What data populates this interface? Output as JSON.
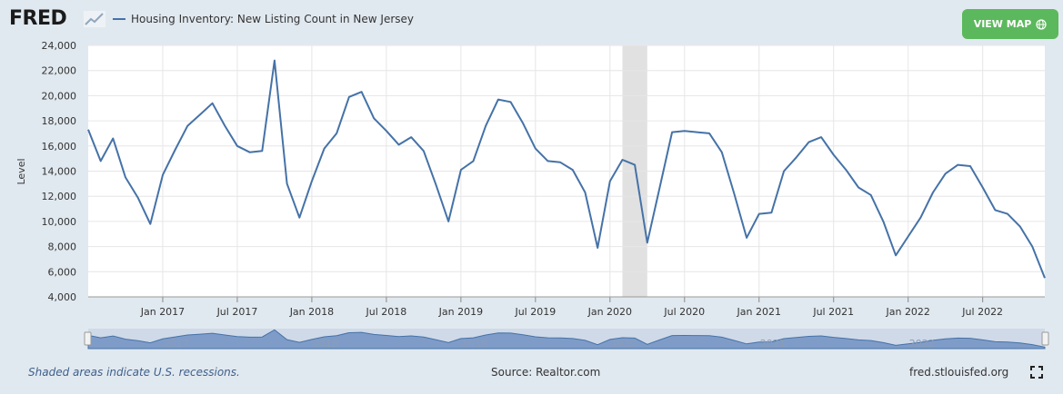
{
  "header": {
    "logo_text": "FRED",
    "logo_icon": "chart-line-icon",
    "legend_label": "Housing Inventory: New Listing Count in New Jersey",
    "view_map_label": "VIEW MAP",
    "view_map_icon": "globe-icon"
  },
  "footer": {
    "recession_note": "Shaded areas indicate U.S. recessions.",
    "source": "Source: Realtor.com",
    "site": "fred.stlouisfed.org",
    "fullscreen_icon": "fullscreen-icon"
  },
  "colors": {
    "line": "#4572a7",
    "recession": "#e1e1e1",
    "background": "#e1e9f0",
    "button": "#5cb85c"
  },
  "chart_data": {
    "type": "line",
    "ylabel": "Level",
    "ylim": [
      4000,
      24000
    ],
    "yticks": [
      4000,
      6000,
      8000,
      10000,
      12000,
      14000,
      16000,
      18000,
      20000,
      22000,
      24000
    ],
    "ytick_labels": [
      "4,000",
      "6,000",
      "8,000",
      "10,000",
      "12,000",
      "14,000",
      "16,000",
      "18,000",
      "20,000",
      "22,000",
      "24,000"
    ],
    "xlim": [
      "2016-07",
      "2022-12"
    ],
    "xticks": [
      "2017-01",
      "2017-07",
      "2018-01",
      "2018-07",
      "2019-01",
      "2019-07",
      "2020-01",
      "2020-07",
      "2021-01",
      "2021-07",
      "2022-01",
      "2022-07"
    ],
    "xtick_labels": [
      "Jan 2017",
      "Jul 2017",
      "Jan 2018",
      "Jul 2018",
      "Jan 2019",
      "Jul 2019",
      "Jan 2020",
      "Jul 2020",
      "Jan 2021",
      "Jul 2021",
      "Jan 2022",
      "Jul 2022"
    ],
    "recession": [
      "2020-02",
      "2020-04"
    ],
    "navigator_labels": [
      "2017",
      "2018",
      "2019",
      "2020",
      "2021",
      "2022"
    ],
    "series": [
      {
        "x": [
          "2016-07",
          "2016-08",
          "2016-09",
          "2016-10",
          "2016-11",
          "2016-12",
          "2017-01",
          "2017-02",
          "2017-03",
          "2017-04",
          "2017-05",
          "2017-06",
          "2017-07",
          "2017-08",
          "2017-09",
          "2017-10",
          "2017-11",
          "2017-12",
          "2018-01",
          "2018-02",
          "2018-03",
          "2018-04",
          "2018-05",
          "2018-06",
          "2018-07",
          "2018-08",
          "2018-09",
          "2018-10",
          "2018-11",
          "2018-12",
          "2019-01",
          "2019-02",
          "2019-03",
          "2019-04",
          "2019-05",
          "2019-06",
          "2019-07",
          "2019-08",
          "2019-09",
          "2019-10",
          "2019-11",
          "2019-12",
          "2020-01",
          "2020-02",
          "2020-03",
          "2020-04",
          "2020-05",
          "2020-06",
          "2020-07",
          "2020-08",
          "2020-09",
          "2020-10",
          "2020-11",
          "2020-12",
          "2021-01",
          "2021-02",
          "2021-03",
          "2021-04",
          "2021-05",
          "2021-06",
          "2021-07",
          "2021-08",
          "2021-09",
          "2021-10",
          "2021-11",
          "2021-12",
          "2022-01",
          "2022-02",
          "2022-03",
          "2022-04",
          "2022-05",
          "2022-06",
          "2022-07",
          "2022-08",
          "2022-09",
          "2022-10",
          "2022-11",
          "2022-12"
        ],
        "values": [
          17300,
          14800,
          16600,
          13500,
          11900,
          9800,
          13700,
          15700,
          17600,
          18500,
          19400,
          17600,
          16000,
          15500,
          15600,
          22800,
          13000,
          10300,
          13200,
          15800,
          17000,
          19900,
          20300,
          18200,
          17200,
          16100,
          16700,
          15600,
          12900,
          10000,
          14100,
          14800,
          17600,
          19700,
          19500,
          17800,
          15800,
          14800,
          14700,
          14100,
          12300,
          7900,
          13200,
          14900,
          14500,
          8300,
          12700,
          17100,
          17200,
          17100,
          17000,
          15500,
          12200,
          8700,
          10600,
          10700,
          14000,
          15100,
          16300,
          16700,
          15300,
          14100,
          12700,
          12100,
          10000,
          7300,
          8800,
          10300,
          12300,
          13800,
          14500,
          14400,
          12700,
          10900,
          10600,
          9600,
          8000,
          5500
        ]
      }
    ]
  }
}
